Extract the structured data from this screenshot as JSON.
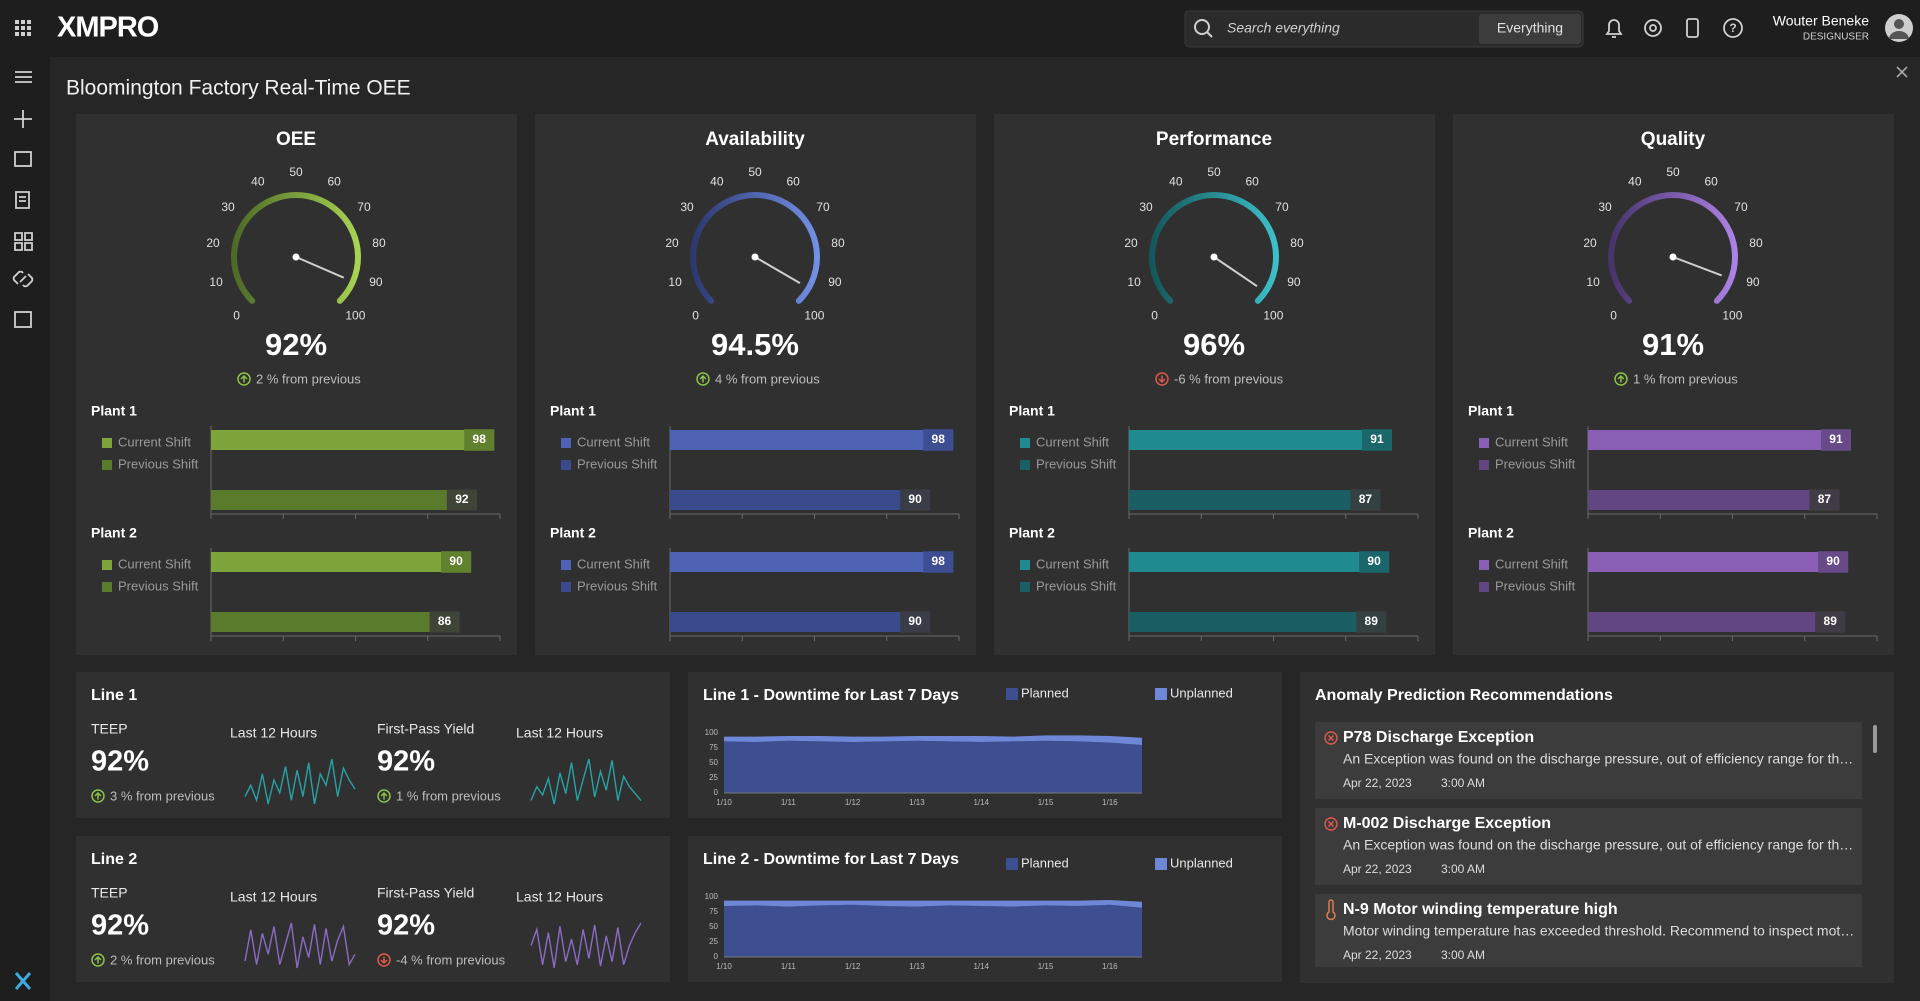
{
  "header": {
    "logo": "XMPRO",
    "search_placeholder": "Search everything",
    "search_scope": "Everything",
    "user_name": "Wouter Beneke",
    "user_role": "DESIGNUSER"
  },
  "page_title": "Bloomington Factory Real-Time OEE",
  "kpis": [
    {
      "title": "OEE",
      "gauge_range": [
        0,
        100
      ],
      "gauge_ticks": [
        0,
        10,
        20,
        30,
        40,
        50,
        60,
        70,
        80,
        90,
        100
      ],
      "value": 92,
      "value_label": "92%",
      "change": "2 % from previous",
      "change_direction": "up",
      "colors": {
        "arc_start": "#4d6a27",
        "arc_end": "#a8d352",
        "current": "#7ea53c",
        "previous": "#5a7a2c"
      },
      "legend": [
        "Current Shift",
        "Previous Shift"
      ],
      "bar_range": [
        0,
        100
      ],
      "bar_ticks": [
        0,
        25,
        50,
        75,
        100
      ],
      "plants": [
        {
          "name": "Plant 1",
          "current": 98,
          "previous": 92
        },
        {
          "name": "Plant 2",
          "current": 90,
          "previous": 86
        }
      ]
    },
    {
      "title": "Availability",
      "gauge_range": [
        0,
        100
      ],
      "gauge_ticks": [
        0,
        10,
        20,
        30,
        40,
        50,
        60,
        70,
        80,
        90,
        100
      ],
      "value": 94.5,
      "value_label": "94.5%",
      "change": "4 % from previous",
      "change_direction": "up",
      "colors": {
        "arc_start": "#2c3970",
        "arc_end": "#7390e6",
        "current": "#4f63b5",
        "previous": "#3a4a8c"
      },
      "legend": [
        "Current Shift",
        "Previous Shift"
      ],
      "bar_range": [
        0,
        100
      ],
      "bar_ticks": [
        0,
        25,
        50,
        75,
        100
      ],
      "plants": [
        {
          "name": "Plant 1",
          "current": 98,
          "previous": 90
        },
        {
          "name": "Plant 2",
          "current": 98,
          "previous": 90
        }
      ]
    },
    {
      "title": "Performance",
      "gauge_range": [
        0,
        100
      ],
      "gauge_ticks": [
        0,
        10,
        20,
        30,
        40,
        50,
        60,
        70,
        80,
        90,
        100
      ],
      "value": 96,
      "value_label": "96%",
      "change": "-6 % from previous",
      "change_direction": "down",
      "colors": {
        "arc_start": "#14575a",
        "arc_end": "#3cc0c9",
        "current": "#1f8a90",
        "previous": "#1a5f64"
      },
      "legend": [
        "Current Shift",
        "Previous Shift"
      ],
      "bar_range": [
        0,
        100
      ],
      "bar_ticks": [
        0,
        25,
        50,
        75,
        100
      ],
      "plants": [
        {
          "name": "Plant 1",
          "current": 91,
          "previous": 87
        },
        {
          "name": "Plant 2",
          "current": 90,
          "previous": 89
        }
      ]
    },
    {
      "title": "Quality",
      "gauge_range": [
        0,
        100
      ],
      "gauge_ticks": [
        0,
        10,
        20,
        30,
        40,
        50,
        60,
        70,
        80,
        90,
        100
      ],
      "value": 91,
      "value_label": "91%",
      "change": "1 % from previous",
      "change_direction": "up",
      "colors": {
        "arc_start": "#47346c",
        "arc_end": "#ad82e6",
        "current": "#8a60b6",
        "previous": "#624681"
      },
      "legend": [
        "Current Shift",
        "Previous Shift"
      ],
      "bar_range": [
        0,
        100
      ],
      "bar_ticks": [
        0,
        25,
        50,
        75,
        100
      ],
      "plants": [
        {
          "name": "Plant 1",
          "current": 91,
          "previous": 87
        },
        {
          "name": "Plant 2",
          "current": 90,
          "previous": 89
        }
      ]
    }
  ],
  "lines": [
    {
      "title": "Line 1",
      "metrics": [
        {
          "name": "TEEP",
          "value": 92,
          "value_label": "92%",
          "change": "3 % from previous",
          "change_direction": "up",
          "spark_label": "Last 12 Hours",
          "spark_color": "#27a3a6",
          "spark": [
            40,
            55,
            35,
            70,
            30,
            62,
            45,
            80,
            35,
            75,
            40,
            85,
            30,
            70,
            55,
            90,
            40,
            78,
            62,
            50
          ]
        },
        {
          "name": "First-Pass Yield",
          "value": 92,
          "value_label": "92%",
          "change": "1 % from previous",
          "change_direction": "up",
          "spark_label": "Last 12 Hours",
          "spark_color": "#27a3a6",
          "spark": [
            30,
            50,
            38,
            62,
            25,
            70,
            40,
            85,
            30,
            60,
            90,
            35,
            72,
            45,
            88,
            30,
            65,
            50,
            40,
            30
          ]
        }
      ]
    },
    {
      "title": "Line 2",
      "metrics": [
        {
          "name": "TEEP",
          "value": 92,
          "value_label": "92%",
          "change": "2 % from previous",
          "change_direction": "up",
          "spark_label": "Last 12 Hours",
          "spark_color": "#8a6cc4",
          "spark": [
            35,
            80,
            30,
            75,
            45,
            85,
            30,
            60,
            90,
            25,
            70,
            40,
            88,
            30,
            82,
            35,
            65,
            85,
            30,
            45
          ]
        },
        {
          "name": "First-Pass Yield",
          "value": 92,
          "value_label": "92%",
          "change": "-4 % from previous",
          "change_direction": "down",
          "spark_label": "Last 12 Hours",
          "spark_color": "#8a6cc4",
          "spark": [
            60,
            85,
            30,
            80,
            25,
            90,
            35,
            70,
            30,
            85,
            40,
            92,
            28,
            75,
            35,
            88,
            30,
            60,
            80,
            95
          ]
        }
      ]
    }
  ],
  "downtime": [
    {
      "type": "area",
      "title": "Line 1 - Downtime for Last 7 Days",
      "categories": [
        "1/10",
        null,
        "1/11",
        null,
        "1/12",
        null,
        "1/13",
        null,
        "1/14",
        null,
        "1/15",
        null,
        "1/16",
        null
      ],
      "series": [
        {
          "name": "Planned",
          "color": "#3d4f90",
          "values": [
            86,
            85,
            87,
            86,
            85,
            86,
            87,
            86,
            85,
            86,
            87,
            86,
            84,
            80
          ]
        },
        {
          "name": "Unplanned",
          "color": "#6f87d8",
          "values": [
            8,
            9,
            8,
            9,
            9,
            8,
            8,
            9,
            10,
            8,
            9,
            10,
            11,
            12
          ]
        }
      ],
      "ylim": [
        0,
        100
      ],
      "yticks": [
        0,
        25,
        50,
        75,
        100
      ]
    },
    {
      "type": "area",
      "title": "Line 2 - Downtime for Last 7 Days",
      "categories": [
        "1/10",
        null,
        "1/11",
        null,
        "1/12",
        null,
        "1/13",
        null,
        "1/14",
        null,
        "1/15",
        null,
        "1/16",
        null
      ],
      "series": [
        {
          "name": "Planned",
          "color": "#3d4f90",
          "values": [
            85,
            86,
            84,
            86,
            87,
            85,
            84,
            86,
            85,
            84,
            86,
            85,
            87,
            82
          ]
        },
        {
          "name": "Unplanned",
          "color": "#6f87d8",
          "values": [
            9,
            8,
            10,
            8,
            7,
            9,
            10,
            8,
            9,
            10,
            8,
            9,
            8,
            10
          ]
        }
      ],
      "ylim": [
        0,
        100
      ],
      "yticks": [
        0,
        25,
        50,
        75,
        100
      ]
    }
  ],
  "anomalies": {
    "title": "Anomaly Prediction Recommendations",
    "items": [
      {
        "icon": "exception",
        "title": "P78 Discharge Exception",
        "description": "An Exception was found on the discharge pressure, out of efficiency range for th…",
        "date": "Apr 22, 2023",
        "time": "3:00 AM"
      },
      {
        "icon": "exception",
        "title": "M-002 Discharge Exception",
        "description": "An Exception was found on the discharge pressure, out of efficiency range for th…",
        "date": "Apr 22, 2023",
        "time": "3:00 AM"
      },
      {
        "icon": "temperature",
        "title": "N-9 Motor winding temperature high",
        "description": "Motor winding temperature has exceeded threshold. Recommend to inspect mot…",
        "date": "Apr 22, 2023",
        "time": "3:00 AM"
      }
    ]
  }
}
